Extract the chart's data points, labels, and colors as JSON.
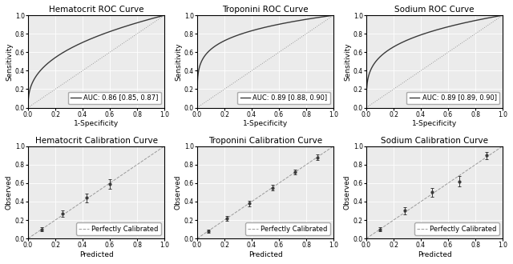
{
  "roc_titles": [
    "Hematocrit ROC Curve",
    "Troponini ROC Curve",
    "Sodium ROC Curve"
  ],
  "cal_titles": [
    "Hematocrit Calibration Curve",
    "Troponini Calibration Curve",
    "Sodium Calibration Curve"
  ],
  "auc_labels": [
    "AUC: 0.86 [0.85, 0.87]",
    "AUC: 0.89 [0.88, 0.90]",
    "AUC: 0.89 [0.89, 0.90]"
  ],
  "roc_params": [
    {
      "power": 0.38
    },
    {
      "power": 0.2
    },
    {
      "power": 0.26
    }
  ],
  "cal_points": [
    {
      "x": [
        0.1,
        0.25,
        0.43,
        0.6
      ],
      "y": [
        0.1,
        0.27,
        0.44,
        0.59
      ],
      "yerr": [
        0.025,
        0.035,
        0.045,
        0.055
      ]
    },
    {
      "x": [
        0.08,
        0.22,
        0.38,
        0.55,
        0.72,
        0.88
      ],
      "y": [
        0.08,
        0.22,
        0.38,
        0.55,
        0.72,
        0.88
      ],
      "yerr": [
        0.02,
        0.025,
        0.03,
        0.03,
        0.025,
        0.03
      ]
    },
    {
      "x": [
        0.1,
        0.28,
        0.48,
        0.68,
        0.88
      ],
      "y": [
        0.1,
        0.3,
        0.5,
        0.62,
        0.9
      ],
      "yerr": [
        0.025,
        0.04,
        0.05,
        0.06,
        0.04
      ]
    }
  ],
  "line_color": "#3a3a3a",
  "diag_color": "#999999",
  "bg_color": "#ebebeb",
  "title_fontsize": 7.5,
  "label_fontsize": 6.5,
  "tick_fontsize": 5.5,
  "legend_fontsize": 6.0
}
